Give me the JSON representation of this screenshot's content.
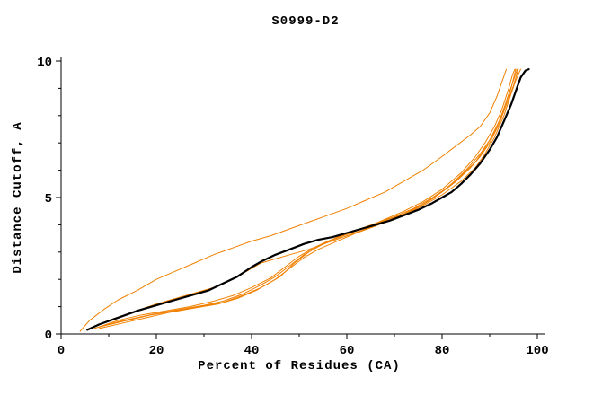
{
  "chart_data": {
    "type": "line",
    "title": "S0999-D2",
    "xlabel": "Percent of Residues (CA)",
    "ylabel": "Distance Cutoff, A",
    "xlim": [
      0,
      100
    ],
    "ylim": [
      0,
      10
    ],
    "grid": false,
    "legend": "none",
    "axis_color": "#000000",
    "x_major_ticks": [
      0,
      20,
      40,
      60,
      80,
      100
    ],
    "x_minor_ticks": [
      10,
      30,
      50,
      70,
      90
    ],
    "y_major_ticks": [
      0,
      5,
      10
    ],
    "y_minor_ticks": [
      1,
      2,
      3,
      4,
      6,
      7,
      8,
      9
    ],
    "series": [
      {
        "name": "orange-high",
        "color": "#f08000",
        "width": 1,
        "points": [
          [
            4,
            0.1
          ],
          [
            6,
            0.5
          ],
          [
            9,
            0.9
          ],
          [
            12,
            1.25
          ],
          [
            16,
            1.6
          ],
          [
            20,
            2.0
          ],
          [
            24,
            2.3
          ],
          [
            28,
            2.6
          ],
          [
            32,
            2.9
          ],
          [
            36,
            3.15
          ],
          [
            40,
            3.4
          ],
          [
            44,
            3.6
          ],
          [
            48,
            3.85
          ],
          [
            52,
            4.1
          ],
          [
            56,
            4.35
          ],
          [
            60,
            4.6
          ],
          [
            64,
            4.9
          ],
          [
            68,
            5.2
          ],
          [
            72,
            5.6
          ],
          [
            76,
            6.0
          ],
          [
            80,
            6.5
          ],
          [
            83,
            6.9
          ],
          [
            86,
            7.3
          ],
          [
            88,
            7.6
          ],
          [
            90,
            8.1
          ],
          [
            91.5,
            8.7
          ],
          [
            92.5,
            9.2
          ],
          [
            93.5,
            9.7
          ]
        ]
      },
      {
        "name": "orange-1",
        "color": "#f08000",
        "width": 1,
        "points": [
          [
            6,
            0.2
          ],
          [
            10,
            0.5
          ],
          [
            15,
            0.8
          ],
          [
            20,
            1.1
          ],
          [
            25,
            1.35
          ],
          [
            30,
            1.6
          ],
          [
            33,
            1.75
          ],
          [
            36,
            2.0
          ],
          [
            39,
            2.3
          ],
          [
            42,
            2.6
          ],
          [
            45,
            2.75
          ],
          [
            48,
            2.9
          ],
          [
            52,
            3.1
          ],
          [
            56,
            3.35
          ],
          [
            60,
            3.6
          ],
          [
            64,
            3.85
          ],
          [
            68,
            4.1
          ],
          [
            72,
            4.35
          ],
          [
            76,
            4.7
          ],
          [
            80,
            5.1
          ],
          [
            84,
            5.6
          ],
          [
            87,
            6.1
          ],
          [
            89,
            6.6
          ],
          [
            91,
            7.2
          ],
          [
            93,
            8.0
          ],
          [
            94.5,
            8.8
          ],
          [
            95.5,
            9.3
          ],
          [
            96.5,
            9.7
          ]
        ]
      },
      {
        "name": "orange-2",
        "color": "#f08000",
        "width": 1,
        "points": [
          [
            8,
            0.25
          ],
          [
            12,
            0.45
          ],
          [
            16,
            0.6
          ],
          [
            20,
            0.75
          ],
          [
            25,
            0.9
          ],
          [
            30,
            1.05
          ],
          [
            34,
            1.2
          ],
          [
            38,
            1.45
          ],
          [
            42,
            1.8
          ],
          [
            45,
            2.1
          ],
          [
            48,
            2.5
          ],
          [
            51,
            2.9
          ],
          [
            54,
            3.2
          ],
          [
            57,
            3.45
          ],
          [
            60,
            3.65
          ],
          [
            64,
            3.9
          ],
          [
            68,
            4.15
          ],
          [
            72,
            4.4
          ],
          [
            76,
            4.75
          ],
          [
            80,
            5.2
          ],
          [
            83,
            5.6
          ],
          [
            86,
            6.1
          ],
          [
            88,
            6.5
          ],
          [
            90,
            7.0
          ],
          [
            92,
            7.7
          ],
          [
            93.5,
            8.4
          ],
          [
            95,
            9.1
          ],
          [
            96,
            9.7
          ]
        ]
      },
      {
        "name": "orange-3",
        "color": "#f08000",
        "width": 1,
        "points": [
          [
            9,
            0.3
          ],
          [
            14,
            0.5
          ],
          [
            19,
            0.7
          ],
          [
            24,
            0.85
          ],
          [
            29,
            1.0
          ],
          [
            34,
            1.15
          ],
          [
            38,
            1.4
          ],
          [
            42,
            1.7
          ],
          [
            46,
            2.1
          ],
          [
            49,
            2.6
          ],
          [
            52,
            3.0
          ],
          [
            55,
            3.3
          ],
          [
            58,
            3.55
          ],
          [
            62,
            3.8
          ],
          [
            66,
            4.05
          ],
          [
            70,
            4.3
          ],
          [
            74,
            4.6
          ],
          [
            78,
            5.0
          ],
          [
            81,
            5.35
          ],
          [
            84,
            5.8
          ],
          [
            87,
            6.3
          ],
          [
            89,
            6.8
          ],
          [
            91,
            7.4
          ],
          [
            92.5,
            8.0
          ],
          [
            94,
            8.8
          ],
          [
            95,
            9.3
          ],
          [
            95.8,
            9.7
          ]
        ]
      },
      {
        "name": "orange-4",
        "color": "#f08000",
        "width": 1,
        "points": [
          [
            8,
            0.2
          ],
          [
            13,
            0.4
          ],
          [
            18,
            0.6
          ],
          [
            23,
            0.8
          ],
          [
            28,
            0.95
          ],
          [
            33,
            1.1
          ],
          [
            37,
            1.3
          ],
          [
            41,
            1.6
          ],
          [
            45,
            2.0
          ],
          [
            48,
            2.4
          ],
          [
            51,
            2.8
          ],
          [
            54,
            3.1
          ],
          [
            58,
            3.4
          ],
          [
            62,
            3.7
          ],
          [
            66,
            3.95
          ],
          [
            70,
            4.25
          ],
          [
            74,
            4.55
          ],
          [
            78,
            4.95
          ],
          [
            82,
            5.5
          ],
          [
            85,
            6.0
          ],
          [
            88,
            6.6
          ],
          [
            90,
            7.1
          ],
          [
            92,
            7.8
          ],
          [
            93.5,
            8.5
          ],
          [
            94.5,
            9.0
          ],
          [
            95.5,
            9.7
          ]
        ]
      },
      {
        "name": "orange-5",
        "color": "#f08000",
        "width": 1,
        "points": [
          [
            7,
            0.2
          ],
          [
            12,
            0.5
          ],
          [
            17,
            0.7
          ],
          [
            22,
            0.85
          ],
          [
            27,
            1.0
          ],
          [
            32,
            1.2
          ],
          [
            36,
            1.4
          ],
          [
            40,
            1.7
          ],
          [
            44,
            2.05
          ],
          [
            47,
            2.45
          ],
          [
            50,
            2.85
          ],
          [
            53,
            3.15
          ],
          [
            56,
            3.4
          ],
          [
            60,
            3.65
          ],
          [
            64,
            3.9
          ],
          [
            68,
            4.2
          ],
          [
            72,
            4.5
          ],
          [
            76,
            4.85
          ],
          [
            80,
            5.3
          ],
          [
            84,
            5.9
          ],
          [
            87,
            6.5
          ],
          [
            89,
            7.0
          ],
          [
            91,
            7.6
          ],
          [
            92.5,
            8.2
          ],
          [
            94,
            9.0
          ],
          [
            94.8,
            9.5
          ],
          [
            95.3,
            9.7
          ]
        ]
      },
      {
        "name": "black",
        "color": "#000000",
        "width": 2.2,
        "points": [
          [
            5.5,
            0.15
          ],
          [
            8,
            0.35
          ],
          [
            12,
            0.6
          ],
          [
            16,
            0.85
          ],
          [
            20,
            1.05
          ],
          [
            24,
            1.25
          ],
          [
            28,
            1.45
          ],
          [
            31,
            1.6
          ],
          [
            34,
            1.85
          ],
          [
            37,
            2.1
          ],
          [
            40,
            2.45
          ],
          [
            42,
            2.65
          ],
          [
            45,
            2.9
          ],
          [
            48,
            3.1
          ],
          [
            51,
            3.3
          ],
          [
            54,
            3.45
          ],
          [
            57,
            3.55
          ],
          [
            60,
            3.7
          ],
          [
            63,
            3.85
          ],
          [
            66,
            4.0
          ],
          [
            69,
            4.15
          ],
          [
            72,
            4.35
          ],
          [
            75,
            4.55
          ],
          [
            78,
            4.8
          ],
          [
            80,
            5.0
          ],
          [
            82,
            5.2
          ],
          [
            84,
            5.5
          ],
          [
            86,
            5.85
          ],
          [
            88,
            6.25
          ],
          [
            90,
            6.75
          ],
          [
            91.5,
            7.2
          ],
          [
            93,
            7.8
          ],
          [
            94.5,
            8.4
          ],
          [
            95.5,
            8.9
          ],
          [
            96.5,
            9.4
          ],
          [
            97.5,
            9.65
          ],
          [
            98.2,
            9.7
          ]
        ]
      }
    ]
  }
}
